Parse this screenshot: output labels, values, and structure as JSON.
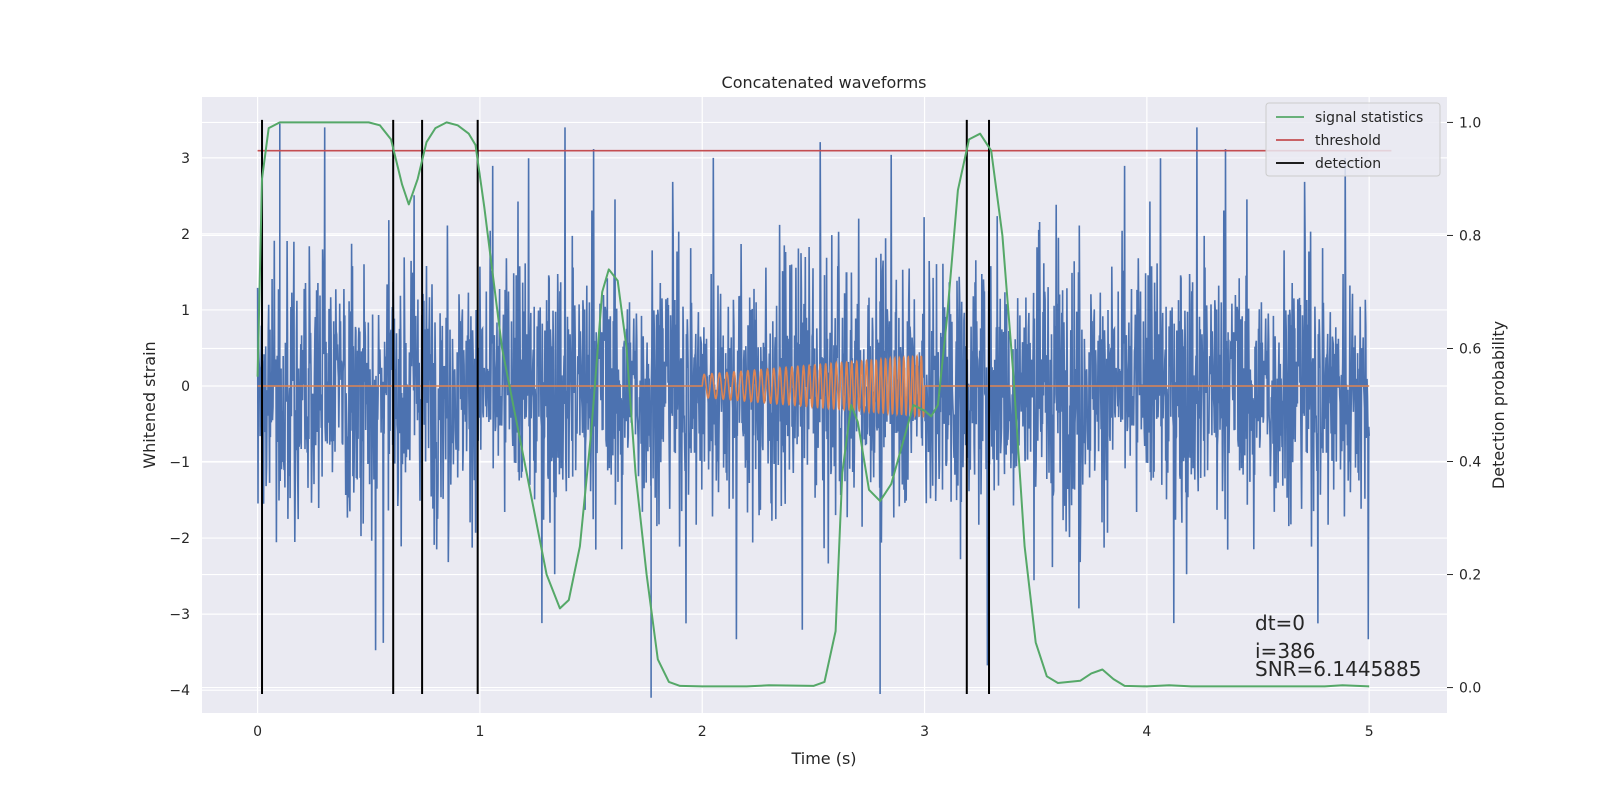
{
  "chart_data": {
    "type": "line",
    "title": "Concatenated waveforms",
    "xlabel": "Time (s)",
    "ylabel_left": "Whitened strain",
    "ylabel_right": "Detection probability",
    "xlim": [
      -0.25,
      5.35
    ],
    "ylim_left": [
      -4.3,
      3.8
    ],
    "ylim_right": [
      -0.045,
      1.045
    ],
    "x_ticks": [
      "0",
      "1",
      "2",
      "3",
      "4",
      "5"
    ],
    "y_ticks_left": [
      "3",
      "2",
      "1",
      "0",
      "−1",
      "−2",
      "−3",
      "−4"
    ],
    "y_ticks_right": [
      "1.0",
      "0.8",
      "0.6",
      "0.4",
      "0.2",
      "0.0"
    ],
    "grid": true,
    "legend_position": "top-right",
    "legend": [
      "signal statistics",
      "threshold",
      "detection"
    ],
    "colors": {
      "noise": "#4c72b0",
      "signal": "#dd8452",
      "statistics": "#55a868",
      "threshold": "#c44e52",
      "detection": "#000000",
      "background": "#eaeaf2"
    },
    "series": [
      {
        "name": "signal statistics",
        "axis": "right",
        "x": [
          0,
          0.02,
          0.05,
          0.1,
          0.2,
          0.3,
          0.4,
          0.5,
          0.55,
          0.6,
          0.65,
          0.68,
          0.72,
          0.76,
          0.8,
          0.85,
          0.9,
          0.95,
          0.98,
          1.02,
          1.1,
          1.2,
          1.3,
          1.36,
          1.4,
          1.45,
          1.5,
          1.55,
          1.58,
          1.62,
          1.66,
          1.7,
          1.75,
          1.8,
          1.85,
          1.9,
          2.0,
          2.2,
          2.3,
          2.5,
          2.55,
          2.6,
          2.63,
          2.67,
          2.7,
          2.75,
          2.8,
          2.85,
          2.9,
          2.95,
          3.0,
          3.03,
          3.06,
          3.1,
          3.15,
          3.2,
          3.25,
          3.3,
          3.35,
          3.4,
          3.45,
          3.5,
          3.55,
          3.6,
          3.7,
          3.75,
          3.8,
          3.85,
          3.9,
          4.0,
          4.1,
          4.2,
          4.5,
          4.8,
          4.88,
          5.0
        ],
        "y": [
          0.55,
          0.9,
          0.99,
          1.0,
          1.0,
          1.0,
          1.0,
          1.0,
          0.995,
          0.97,
          0.89,
          0.855,
          0.9,
          0.965,
          0.99,
          1.0,
          0.995,
          0.98,
          0.96,
          0.85,
          0.6,
          0.4,
          0.2,
          0.14,
          0.155,
          0.25,
          0.45,
          0.7,
          0.74,
          0.72,
          0.6,
          0.38,
          0.2,
          0.05,
          0.01,
          0.003,
          0.002,
          0.002,
          0.004,
          0.003,
          0.01,
          0.1,
          0.38,
          0.5,
          0.47,
          0.35,
          0.33,
          0.36,
          0.43,
          0.5,
          0.49,
          0.48,
          0.5,
          0.65,
          0.88,
          0.97,
          0.98,
          0.95,
          0.8,
          0.55,
          0.25,
          0.08,
          0.02,
          0.008,
          0.012,
          0.025,
          0.032,
          0.015,
          0.003,
          0.002,
          0.004,
          0.002,
          0.002,
          0.002,
          0.004,
          0.002
        ]
      },
      {
        "name": "threshold",
        "axis": "right",
        "x": [
          0,
          5.1
        ],
        "y": [
          0.95,
          0.95
        ]
      }
    ],
    "whitened_strain": {
      "axis": "left",
      "x_range": [
        0,
        5.0
      ],
      "envelope": [
        -2.4,
        2.4
      ],
      "extremes": [
        3.45,
        -4.1
      ]
    },
    "injected_signal": {
      "axis": "left",
      "x_range": [
        2.0,
        3.0
      ],
      "amplitude_start": 0.15,
      "amplitude_end": 0.4,
      "freq_start_hz": 28,
      "freq_end_hz": 52
    },
    "detections": {
      "name": "detection",
      "x": [
        0.02,
        0.61,
        0.74,
        0.99,
        3.19,
        3.29
      ]
    },
    "annotations": [
      "dt=0",
      "i=386",
      "SNR=6.1445885"
    ]
  }
}
